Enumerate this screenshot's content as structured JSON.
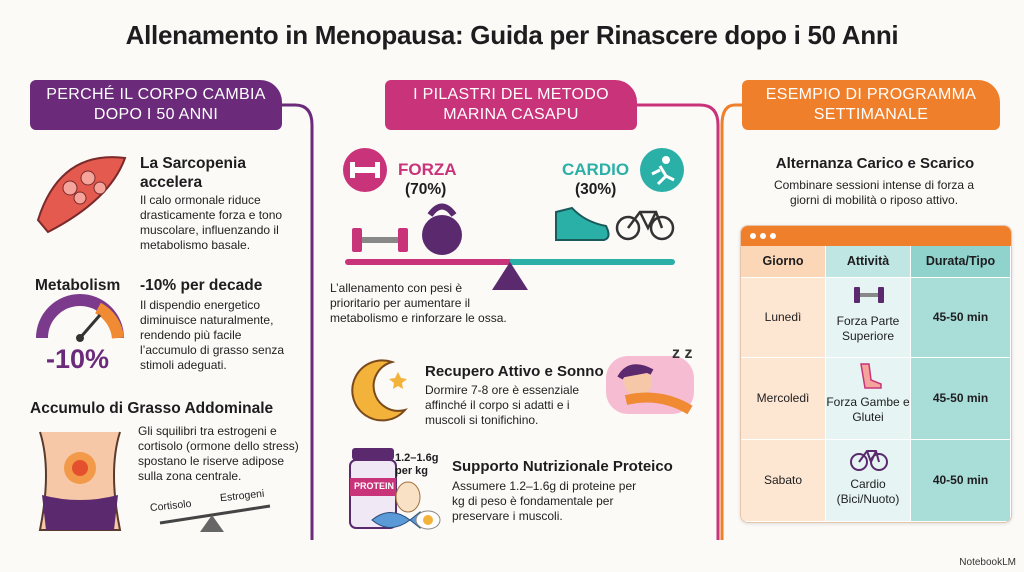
{
  "title": "Allenamento in Menopausa: Guida per Rinascere dopo i 50 Anni",
  "left": {
    "header": "PERCHÉ IL CORPO CAMBIA DOPO I 50 ANNI",
    "sarcopenia": {
      "title": "La Sarcopenia accelera",
      "text": "Il calo ormonale riduce drasticamente forza e tono muscolare, influenzando il metabolismo basale."
    },
    "metabolism": {
      "label": "Metabolism",
      "title": "-10% per decade",
      "gauge": "-10%",
      "text": "Il dispendio energetico diminuisce naturalmente, rendendo più facile l’accumulo di grasso senza stimoli adeguati."
    },
    "fat": {
      "title": "Accumulo di Grasso Addominale",
      "text": "Gli squilibri tra estrogeni e cortisolo (ormone dello stress) spostano le riserve adipose sulla zona centrale.",
      "scale_left": "Cortisolo",
      "scale_right": "Estrogeni"
    }
  },
  "middle": {
    "header": "I PILASTRI DEL METODO MARINA CASAPU",
    "strength": {
      "label": "FORZA",
      "share": "(70%)"
    },
    "cardio": {
      "label": "CARDIO",
      "share": "(30%)"
    },
    "note": "L’allenamento con pesi è prioritario per aumentare il metabolismo e rinforzare le ossa.",
    "recovery": {
      "title": "Recupero Attivo e Sonno",
      "text": "Dormire 7-8 ore è essenziale affinché il corpo si adatti e i muscoli si tonifichino."
    },
    "nutrition": {
      "title": "Supporto Nutrizionale Proteico",
      "jar": "PROTEIN",
      "dose": "1.2–1.6g per kg",
      "text": "Assumere 1.2–1.6g di proteine per kg di peso è fondamentale per preservare i muscoli."
    }
  },
  "right": {
    "header": "ESEMPIO DI PROGRAMMA SETTIMANALE",
    "subtitle": "Alternanza Carico e Scarico",
    "text": "Combinare sessioni intense di forza a giorni di mobilità o riposo attivo.",
    "table": {
      "headers": [
        "Giorno",
        "Attività",
        "Durata/Tipo"
      ],
      "rows": [
        [
          "Lunedì",
          "Forza Parte Superiore",
          "45-50 min"
        ],
        [
          "Mercoledì",
          "Forza Gambe e Glutei",
          "45-50 min"
        ],
        [
          "Sabato",
          "Cardio (Bici/Nuoto)",
          "40-50 min"
        ]
      ]
    }
  },
  "footer": "NotebookLM"
}
